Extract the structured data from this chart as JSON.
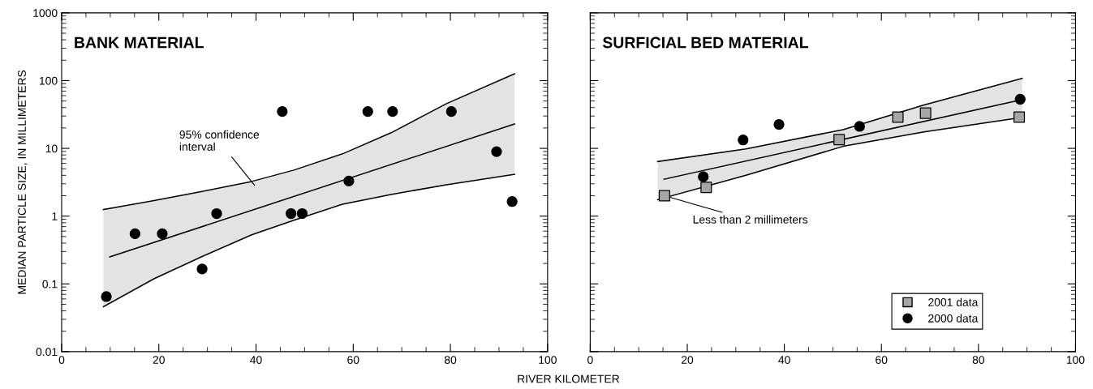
{
  "chart_data": [
    {
      "type": "scatter",
      "title": "BANK MATERIAL",
      "xlabel": "RIVER KILOMETER",
      "ylabel": "MEDIAN PARTICLE SIZE, IN MILLIMETERS",
      "log": "y",
      "grid": false,
      "legend": false,
      "xlim": [
        0,
        100
      ],
      "xticks": [
        0,
        20,
        40,
        60,
        80,
        100
      ],
      "ylim": [
        0.01,
        1000
      ],
      "yticks": [
        0.01,
        0.1,
        1,
        10,
        100,
        1000
      ],
      "series": [
        {
          "type": "line",
          "color": "#000000",
          "marker": "none",
          "x": [
            8.6,
            19.0,
            29.1,
            39.1,
            47.8,
            57.8,
            67.8,
            79.2,
            93.2
          ],
          "values": [
            0.046,
            0.119,
            0.257,
            0.53,
            0.87,
            1.5,
            2.09,
            2.9,
            4.14
          ],
          "lower": [
            0.046,
            0.119,
            0.257,
            0.53,
            0.87,
            1.5,
            2.09,
            2.9,
            4.14
          ],
          "upper": [
            1.25,
            1.7,
            2.33,
            3.25,
            4.78,
            8.3,
            17,
            45.7,
            126
          ]
        },
        {
          "type": "line",
          "color": "#000000",
          "marker": "none",
          "x": [
            8.6,
            19.0,
            29.1,
            39.1,
            47.8,
            57.8,
            67.8,
            79.2,
            93.2
          ],
          "values": [
            1.25,
            1.7,
            2.33,
            3.25,
            4.78,
            8.3,
            17,
            45.7,
            126
          ]
        },
        {
          "type": "line",
          "color": "#000000",
          "marker": "none",
          "x": [
            9.9,
            93.2
          ],
          "values": [
            0.25,
            22.9
          ]
        },
        {
          "color": "#000000",
          "marker": "circle",
          "x": [
            9.2,
            15.1,
            20.7,
            28.9,
            31.9,
            45.4,
            47.2,
            49.5,
            59.1,
            63.0,
            68.1,
            80.2,
            89.5,
            92.7
          ],
          "values": [
            0.065,
            0.55,
            0.55,
            0.166,
            1.09,
            35,
            1.09,
            1.09,
            3.3,
            35,
            35,
            35,
            8.95,
            1.64
          ]
        }
      ],
      "annotations": [
        "95% confidence\ninterval"
      ]
    },
    {
      "type": "scatter",
      "title": "SURFICIAL BED MATERIAL",
      "log": "y",
      "grid": false,
      "legend": "bottom right",
      "tick_labels": "x",
      "xlim": [
        0,
        100
      ],
      "xticks": [
        0,
        20,
        40,
        60,
        80,
        100
      ],
      "ylim": [
        0.01,
        1000
      ],
      "yticks": [
        0.01,
        0.1,
        1,
        10,
        100,
        1000
      ],
      "series": [
        {
          "type": "line",
          "color": "#000000",
          "marker": "none",
          "x": [
            13.9,
            32.1,
            52.1,
            68.8,
            89.0
          ],
          "values": [
            1.75,
            4.0,
            10.7,
            17.5,
            28.7
          ],
          "lower": [
            1.75,
            4.0,
            10.7,
            17.5,
            28.7
          ],
          "upper": [
            6.4,
            9.8,
            18.9,
            43.6,
            108
          ]
        },
        {
          "type": "line",
          "color": "#000000",
          "marker": "none",
          "x": [
            13.9,
            32.1,
            52.1,
            68.8,
            89.0
          ],
          "values": [
            6.4,
            9.8,
            18.9,
            43.6,
            108
          ]
        },
        {
          "type": "line",
          "color": "#000000",
          "marker": "none",
          "x": [
            15.2,
            89.0
          ],
          "values": [
            3.5,
            52.5
          ]
        },
        {
          "name": "2001 data",
          "color": "#a6a6a6",
          "marker": "square",
          "x": [
            15.3,
            23.9,
            51.3,
            63.4,
            69.1,
            88.4
          ],
          "values": [
            2,
            2.66,
            13.5,
            29,
            33.1,
            29
          ]
        },
        {
          "name": "2000 data",
          "color": "#000000",
          "marker": "circle",
          "x": [
            23.3,
            31.5,
            38.9,
            55.5,
            88.6
          ],
          "values": [
            3.82,
            13.3,
            22.5,
            21.1,
            53
          ]
        }
      ],
      "annotations": [
        {
          "text": "Less than 2 millimeters",
          "x": 15.3,
          "y": 2
        }
      ]
    }
  ]
}
